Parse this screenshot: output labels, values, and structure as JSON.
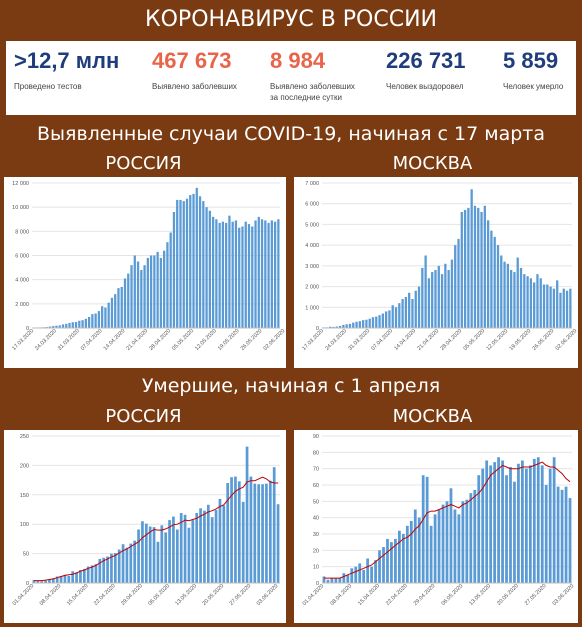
{
  "header": {
    "title": "КОРОНАВИРУС В РОССИИ"
  },
  "stats": [
    {
      "value": ">12,7 млн",
      "label": "Проведено тестов",
      "color": "#1f3d7a"
    },
    {
      "value": "467 673",
      "label": "Выявлено заболевших",
      "color": "#e8644a"
    },
    {
      "value": "8 984",
      "label": "Выявлено заболевших\nза последние сутки",
      "color": "#e8644a"
    },
    {
      "value": "226 731",
      "label": "Человек выздоровел",
      "color": "#1f3d7a"
    },
    {
      "value": "5 859",
      "label": "Человек умерло",
      "color": "#1f3d7a"
    }
  ],
  "cases_section": {
    "title": "Выявленные случаи COVID-19, начиная с 17 марта",
    "left_region": "РОССИЯ",
    "right_region": "МОСКВА"
  },
  "deaths_section": {
    "title": "Умершие, начиная с 1 апреля",
    "left_region": "РОССИЯ",
    "right_region": "МОСКВА"
  },
  "colors": {
    "background": "#7a3b12",
    "bar": "#5b9bd5",
    "trend": "#c00000",
    "grid": "#e4e4e4"
  },
  "chart_data": [
    {
      "type": "bar",
      "region": "РОССИЯ",
      "metric": "cases",
      "x_start": "17.03.2020",
      "xticks": [
        "17.03.2020",
        "24.03.2020",
        "31.03.2020",
        "07.04.2020",
        "14.04.2020",
        "21.04.2020",
        "28.04.2020",
        "05.05.2020",
        "12.05.2020",
        "19.05.2020",
        "26.05.2020",
        "02.06.2020"
      ],
      "ylim": [
        0,
        12000
      ],
      "yticks": [
        "0",
        "2 000",
        "4 000",
        "6 000",
        "8 000",
        "10 000",
        "12 000"
      ],
      "grid": true,
      "values": [
        30,
        20,
        50,
        60,
        80,
        120,
        160,
        190,
        220,
        300,
        350,
        420,
        480,
        500,
        600,
        650,
        760,
        910,
        1150,
        1200,
        1400,
        1800,
        1700,
        2100,
        2500,
        2800,
        3300,
        3400,
        4100,
        4500,
        5200,
        6000,
        5500,
        4800,
        5200,
        5800,
        6000,
        6000,
        6300,
        5800,
        6400,
        7100,
        7900,
        9600,
        10600,
        10600,
        10500,
        10700,
        11000,
        11100,
        11600,
        10900,
        10500,
        10000,
        9700,
        9200,
        9000,
        8700,
        8800,
        8700,
        9300,
        8800,
        8900,
        8300,
        8400,
        8800,
        8600,
        8400,
        8900,
        9200,
        9000,
        8900,
        8700,
        8900,
        8800,
        9000
      ]
    },
    {
      "type": "bar",
      "region": "МОСКВА",
      "metric": "cases",
      "x_start": "17.03.2020",
      "xticks": [
        "17.03.2020",
        "24.03.2020",
        "31.03.2020",
        "07.04.2020",
        "14.04.2020",
        "21.04.2020",
        "28.04.2020",
        "05.05.2020",
        "12.05.2020",
        "19.05.2020",
        "26.05.2020",
        "02.06.2020"
      ],
      "ylim": [
        0,
        7000
      ],
      "yticks": [
        "0",
        "1 000",
        "2 000",
        "3 000",
        "4 000",
        "5 000",
        "6 000",
        "7 000"
      ],
      "grid": true,
      "values": [
        30,
        30,
        60,
        50,
        70,
        100,
        150,
        180,
        200,
        260,
        300,
        330,
        380,
        400,
        450,
        520,
        550,
        620,
        700,
        800,
        850,
        1100,
        1000,
        1200,
        1400,
        1500,
        1700,
        1400,
        1800,
        2000,
        2900,
        3500,
        2400,
        2700,
        2800,
        3000,
        2600,
        3100,
        2800,
        3300,
        4000,
        4300,
        5600,
        5700,
        5800,
        6700,
        5900,
        5800,
        5600,
        5900,
        5200,
        4700,
        4400,
        4000,
        3500,
        3200,
        3100,
        2800,
        2700,
        3400,
        2900,
        2600,
        2500,
        2400,
        2200,
        2600,
        2400,
        2100,
        2100,
        2000,
        1900,
        2300,
        1700,
        1900,
        1800,
        1900
      ]
    },
    {
      "type": "bar+line",
      "region": "РОССИЯ",
      "metric": "deaths",
      "x_start": "01.04.2020",
      "xticks": [
        "01.04.2020",
        "08.04.2020",
        "15.04.2020",
        "22.04.2020",
        "29.04.2020",
        "06.05.2020",
        "13.05.2020",
        "20.05.2020",
        "27.05.2020",
        "03.06.2020"
      ],
      "ylim": [
        0,
        250
      ],
      "yticks": [
        "0",
        "50",
        "100",
        "150",
        "200",
        "250"
      ],
      "grid": true,
      "values": [
        5,
        4,
        3,
        4,
        6,
        8,
        11,
        12,
        14,
        12,
        20,
        18,
        22,
        24,
        28,
        30,
        32,
        41,
        43,
        45,
        50,
        51,
        57,
        66,
        60,
        67,
        72,
        91,
        105,
        101,
        96,
        95,
        70,
        98,
        86,
        107,
        113,
        91,
        119,
        116,
        94,
        107,
        119,
        127,
        123,
        133,
        112,
        124,
        143,
        132,
        170,
        180,
        181,
        173,
        138,
        232,
        181,
        169,
        168,
        168,
        169,
        174,
        197,
        134
      ],
      "trend": [
        4,
        4,
        4,
        5,
        6,
        7,
        9,
        11,
        13,
        14,
        15,
        17,
        20,
        22,
        25,
        27,
        30,
        34,
        38,
        41,
        44,
        47,
        51,
        55,
        58,
        62,
        66,
        70,
        77,
        82,
        87,
        91,
        90,
        90,
        92,
        95,
        99,
        100,
        103,
        107,
        106,
        108,
        110,
        114,
        117,
        121,
        123,
        126,
        130,
        133,
        141,
        149,
        156,
        160,
        163,
        172,
        174,
        174,
        177,
        180,
        177,
        172,
        170,
        170
      ]
    },
    {
      "type": "bar+line",
      "region": "МОСКВА",
      "metric": "deaths",
      "x_start": "01.04.2020",
      "xticks": [
        "01.04.2020",
        "08.04.2020",
        "15.04.2020",
        "22.04.2020",
        "29.04.2020",
        "06.05.2020",
        "13.05.2020",
        "20.05.2020",
        "27.05.2020",
        "03.06.2020"
      ],
      "ylim": [
        0,
        90
      ],
      "yticks": [
        "0",
        "10",
        "20",
        "30",
        "40",
        "50",
        "60",
        "70",
        "80",
        "90"
      ],
      "grid": true,
      "values": [
        4,
        2,
        3,
        3,
        3,
        6,
        5,
        9,
        10,
        12,
        8,
        15,
        10,
        14,
        20,
        22,
        27,
        25,
        27,
        32,
        30,
        35,
        38,
        45,
        40,
        66,
        65,
        35,
        42,
        45,
        48,
        50,
        58,
        45,
        42,
        50,
        51,
        55,
        57,
        66,
        70,
        75,
        72,
        74,
        77,
        75,
        66,
        71,
        62,
        73,
        75,
        70,
        72,
        76,
        77,
        72,
        60,
        70,
        77,
        59,
        57,
        59,
        52
      ],
      "trend": [
        3,
        3,
        3,
        3,
        3,
        4,
        5,
        6,
        7,
        8,
        9,
        10,
        11,
        13,
        15,
        17,
        19,
        21,
        23,
        25,
        27,
        28,
        30,
        33,
        35,
        39,
        43,
        44,
        44,
        45,
        46,
        47,
        48,
        47,
        46,
        48,
        49,
        51,
        53,
        55,
        58,
        62,
        66,
        68,
        70,
        72,
        71,
        70,
        70,
        70,
        71,
        71,
        71,
        72,
        73,
        74,
        72,
        71,
        71,
        69,
        67,
        64,
        62
      ]
    }
  ]
}
